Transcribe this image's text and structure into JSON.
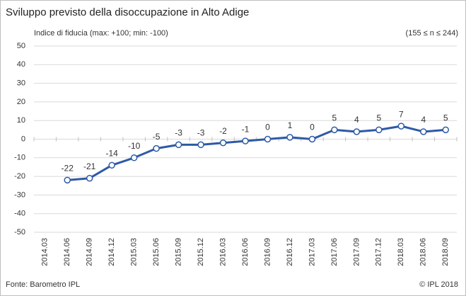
{
  "chart_data": {
    "type": "line",
    "title": "Sviluppo previsto della disoccupazione in Alto Adige",
    "ylabel": "Indice di fiducia (max: +100; min: -100)",
    "subtitle": "(155 ≤ n ≤ 244)",
    "source": "Fonte: Barometro IPL",
    "copyright": "© IPL 2018",
    "categories": [
      "2014.03",
      "2014.06",
      "2014.09",
      "2014.12",
      "2015.03",
      "2015.06",
      "2015.09",
      "2015.12",
      "2016.03",
      "2016.06",
      "2016.09",
      "2016.12",
      "2017.03",
      "2017.06",
      "2017.09",
      "2017.12",
      "2018.03",
      "2018.06",
      "2018.09"
    ],
    "series": [
      {
        "name": "Indice di fiducia",
        "color": "#2e5aa7",
        "values": [
          null,
          -22,
          -21,
          -14,
          -10,
          -5,
          -3,
          -3,
          -2,
          -1,
          0,
          1,
          0,
          5,
          4,
          5,
          7,
          4,
          5
        ]
      }
    ],
    "ylim": [
      -50,
      50
    ],
    "yticks": [
      -50,
      -40,
      -30,
      -20,
      -10,
      0,
      10,
      20,
      30,
      40,
      50
    ],
    "grid": true
  }
}
